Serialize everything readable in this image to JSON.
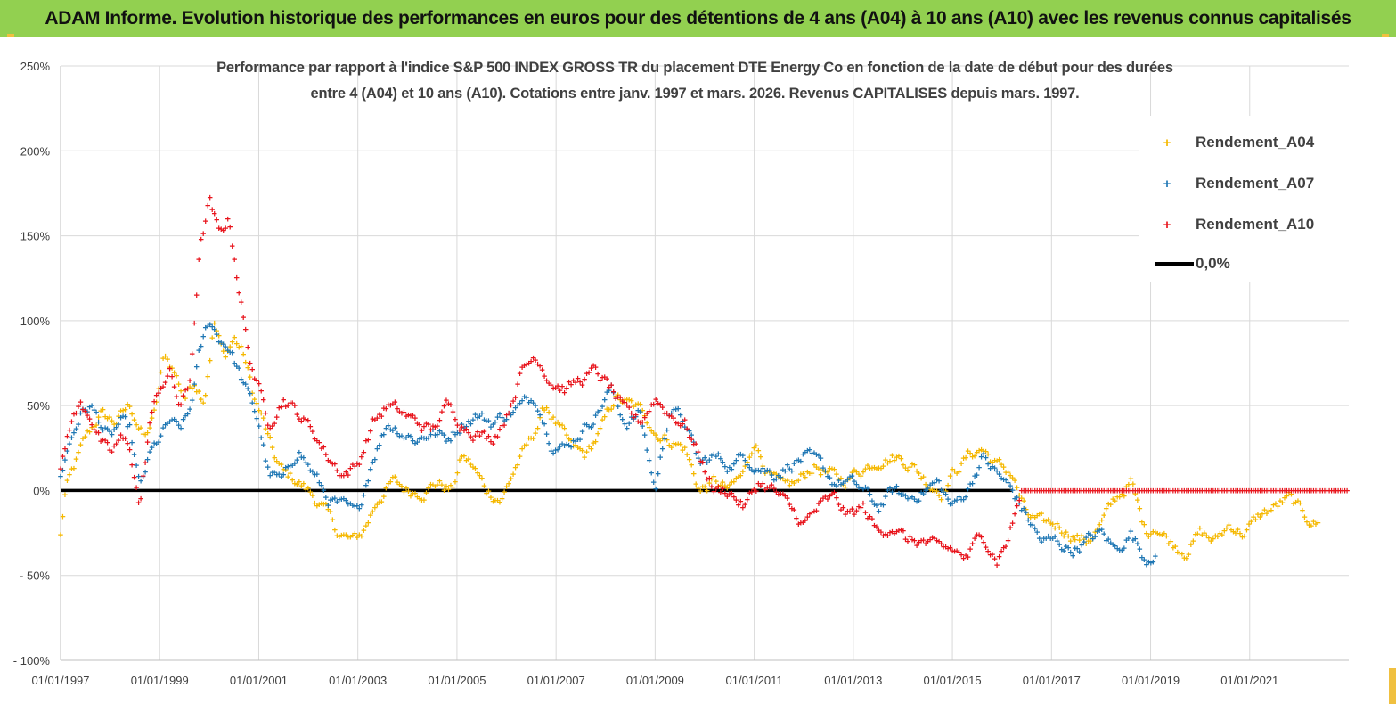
{
  "banner": {
    "title": "ADAM Informe. Evolution historique des performances en euros pour des détentions de 4 ans (A04) à 10 ans (A10) avec les revenus connus capitalisés"
  },
  "chart_data": {
    "type": "scatter",
    "title_line1": "Performance par rapport à l'indice S&P 500 INDEX GROSS TR  du placement DTE Energy Co en fonction de la date de début pour des durées",
    "title_line2": "entre 4 (A04) et 10 ans (A10). Cotations entre janv. 1997 et mars. 2026. Revenus CAPITALISES depuis mars. 1997.",
    "xlabel": "",
    "ylabel": "",
    "ylim": [
      -100,
      250
    ],
    "xlim": [
      1997.0,
      2023.0
    ],
    "y_ticks": [
      {
        "value": 250,
        "label": "250%"
      },
      {
        "value": 200,
        "label": "200%"
      },
      {
        "value": 150,
        "label": "150%"
      },
      {
        "value": 100,
        "label": "100%"
      },
      {
        "value": 50,
        "label": "50%"
      },
      {
        "value": 0,
        "label": "0%"
      },
      {
        "value": -50,
        "label": "- 50%"
      },
      {
        "value": -100,
        "label": "- 100%"
      }
    ],
    "x_ticks": [
      {
        "value": 1997,
        "label": "01/01/1997"
      },
      {
        "value": 1999,
        "label": "01/01/1999"
      },
      {
        "value": 2001,
        "label": "01/01/2001"
      },
      {
        "value": 2003,
        "label": "01/01/2003"
      },
      {
        "value": 2005,
        "label": "01/01/2005"
      },
      {
        "value": 2007,
        "label": "01/01/2007"
      },
      {
        "value": 2009,
        "label": "01/01/2009"
      },
      {
        "value": 2011,
        "label": "01/01/2011"
      },
      {
        "value": 2013,
        "label": "01/01/2013"
      },
      {
        "value": 2015,
        "label": "01/01/2015"
      },
      {
        "value": 2017,
        "label": "01/01/2017"
      },
      {
        "value": 2019,
        "label": "01/01/2019"
      },
      {
        "value": 2021,
        "label": "01/01/2021"
      }
    ],
    "grid": true,
    "legend_position": "top-right",
    "series": [
      {
        "name": "Rendement_A04",
        "color": "#f5b800",
        "marker": "+",
        "x": [
          1997.0,
          1997.1,
          1997.3,
          1997.5,
          1997.8,
          1998.1,
          1998.4,
          1998.7,
          1998.9,
          1999.1,
          1999.3,
          1999.5,
          1999.7,
          1999.9,
          2000.1,
          2000.3,
          2000.5,
          2000.7,
          2000.9,
          2001.1,
          2001.3,
          2001.5,
          2001.8,
          2002.0,
          2002.3,
          2002.6,
          2002.9,
          2003.1,
          2003.4,
          2003.7,
          2004.0,
          2004.3,
          2004.6,
          2004.9,
          2005.1,
          2005.3,
          2005.6,
          2005.9,
          2006.2,
          2006.5,
          2006.8,
          2007.0,
          2007.3,
          2007.6,
          2007.9,
          2008.2,
          2008.5,
          2008.8,
          2009.0,
          2009.3,
          2009.6,
          2009.9,
          2010.2,
          2010.5,
          2010.8,
          2011.0,
          2011.3,
          2011.6,
          2011.9,
          2012.2,
          2012.5,
          2012.8,
          2013.0,
          2013.3,
          2013.6,
          2013.9,
          2014.2,
          2014.5,
          2014.8,
          2015.0,
          2015.3,
          2015.6,
          2015.9,
          2016.2,
          2016.5,
          2016.8,
          2017.1,
          2017.4,
          2017.7,
          2018.0,
          2018.3,
          2018.6,
          2018.9,
          2019.1,
          2019.4,
          2019.7,
          2020.0,
          2020.3,
          2020.6,
          2020.9,
          2021.2,
          2021.5,
          2021.8,
          2022.1,
          2022.4
        ],
        "y": [
          -27,
          0,
          15,
          30,
          45,
          40,
          50,
          30,
          45,
          80,
          70,
          55,
          65,
          55,
          100,
          78,
          90,
          80,
          55,
          40,
          20,
          10,
          5,
          0,
          -10,
          -25,
          -30,
          -25,
          -5,
          5,
          0,
          0,
          5,
          0,
          20,
          15,
          0,
          -5,
          15,
          30,
          50,
          40,
          25,
          20,
          35,
          55,
          50,
          45,
          35,
          30,
          25,
          0,
          5,
          0,
          10,
          30,
          10,
          0,
          5,
          15,
          10,
          5,
          10,
          15,
          20,
          20,
          15,
          5,
          0,
          10,
          20,
          25,
          15,
          10,
          -15,
          -20,
          -20,
          -25,
          -30,
          -20,
          -5,
          5,
          -25,
          -20,
          -30,
          -35,
          -25,
          -30,
          -20,
          -25,
          -15,
          -10,
          -5,
          -15,
          -20
        ]
      },
      {
        "name": "Rendement_A07",
        "color": "#1f77b4",
        "marker": "+",
        "x": [
          1997.0,
          1997.2,
          1997.4,
          1997.6,
          1997.8,
          1998.0,
          1998.2,
          1998.4,
          1998.6,
          1998.8,
          1999.0,
          1999.2,
          1999.4,
          1999.6,
          1999.8,
          2000.0,
          2000.2,
          2000.4,
          2000.6,
          2000.8,
          2001.0,
          2001.2,
          2001.5,
          2001.8,
          2002.1,
          2002.4,
          2002.7,
          2003.0,
          2003.3,
          2003.6,
          2003.9,
          2004.2,
          2004.5,
          2004.8,
          2005.1,
          2005.4,
          2005.7,
          2006.0,
          2006.3,
          2006.6,
          2006.9,
          2007.2,
          2007.5,
          2007.8,
          2008.1,
          2008.4,
          2008.7,
          2009.0,
          2009.3,
          2009.6,
          2009.9,
          2010.2,
          2010.5,
          2010.8,
          2011.1,
          2011.4,
          2011.7,
          2012.0,
          2012.3,
          2012.6,
          2012.9,
          2013.2,
          2013.5,
          2013.8,
          2014.1,
          2014.4,
          2014.7,
          2015.0,
          2015.3,
          2015.6,
          2015.9,
          2016.2,
          2016.5,
          2016.8,
          2017.1,
          2017.4,
          2017.7,
          2018.0,
          2018.3,
          2018.6,
          2018.9,
          2019.1
        ],
        "y": [
          10,
          30,
          45,
          50,
          40,
          30,
          40,
          35,
          0,
          20,
          30,
          40,
          35,
          45,
          80,
          100,
          90,
          85,
          70,
          55,
          40,
          10,
          5,
          25,
          10,
          -5,
          -10,
          -15,
          20,
          40,
          35,
          30,
          35,
          30,
          40,
          45,
          40,
          45,
          50,
          55,
          30,
          25,
          35,
          45,
          60,
          40,
          45,
          0,
          50,
          40,
          15,
          20,
          15,
          20,
          15,
          10,
          15,
          20,
          15,
          5,
          5,
          0,
          -10,
          0,
          -5,
          0,
          5,
          -10,
          0,
          20,
          10,
          0,
          -15,
          -30,
          -30,
          -35,
          -30,
          -25,
          -35,
          -25,
          -40,
          -35
        ]
      },
      {
        "name": "Rendement_A10",
        "color": "#e8141c",
        "marker": "+",
        "x": [
          1997.0,
          1997.2,
          1997.4,
          1997.6,
          1997.8,
          1998.0,
          1998.2,
          1998.4,
          1998.6,
          1998.8,
          1999.0,
          1999.2,
          1999.4,
          1999.6,
          1999.8,
          2000.0,
          2000.2,
          2000.4,
          2000.6,
          2000.8,
          2001.0,
          2001.2,
          2001.5,
          2001.8,
          2002.1,
          2002.4,
          2002.7,
          2003.0,
          2003.3,
          2003.6,
          2003.9,
          2004.2,
          2004.5,
          2004.8,
          2005.1,
          2005.4,
          2005.7,
          2006.0,
          2006.3,
          2006.6,
          2006.9,
          2007.2,
          2007.5,
          2007.8,
          2008.1,
          2008.4,
          2008.7,
          2009.0,
          2009.3,
          2009.6,
          2009.9,
          2010.2,
          2010.5,
          2010.8,
          2011.1,
          2011.4,
          2011.7,
          2012.0,
          2012.3,
          2012.6,
          2012.9,
          2013.2,
          2013.5,
          2013.8,
          2014.1,
          2014.4,
          2014.7,
          2015.0,
          2015.3,
          2015.6,
          2015.9,
          2016.1,
          2016.4,
          2017.0,
          2018.0,
          2019.0,
          2020.0,
          2021.0,
          2022.0,
          2023.0
        ],
        "y": [
          10,
          40,
          50,
          45,
          30,
          20,
          30,
          25,
          -10,
          40,
          60,
          70,
          50,
          60,
          140,
          170,
          150,
          160,
          120,
          80,
          60,
          40,
          55,
          45,
          35,
          20,
          10,
          15,
          40,
          50,
          45,
          40,
          35,
          50,
          40,
          35,
          30,
          45,
          70,
          80,
          65,
          60,
          65,
          70,
          60,
          45,
          40,
          55,
          45,
          40,
          20,
          0,
          0,
          -10,
          5,
          0,
          -10,
          -20,
          -10,
          -5,
          -15,
          -10,
          -25,
          -20,
          -30,
          -30,
          -35,
          -35,
          -40,
          -25,
          -40,
          -30,
          0,
          0,
          0,
          0,
          0,
          0,
          0,
          0
        ]
      }
    ],
    "reference_line": {
      "name": "0,0%",
      "value": 0,
      "color": "#000000"
    }
  }
}
